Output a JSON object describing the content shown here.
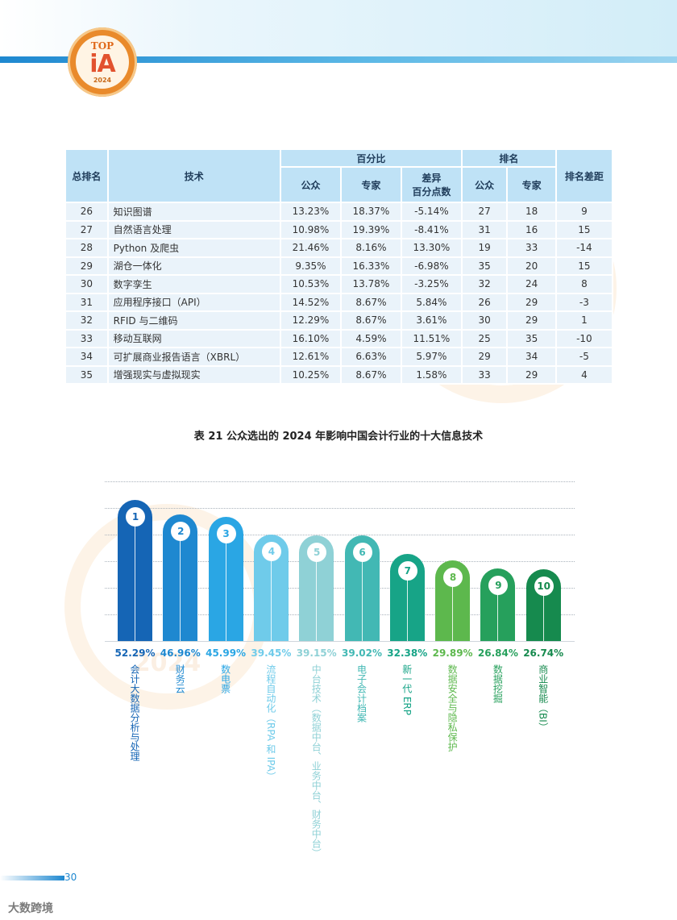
{
  "logo": {
    "top": "TOP",
    "ia": "iA",
    "year": "2024"
  },
  "table": {
    "h_rank": "总排名",
    "h_tech": "技术",
    "h_pct": "百分比",
    "h_rankgroup": "排名",
    "h_diff_rank": "排名差距",
    "h_public": "公众",
    "h_expert": "专家",
    "h_diff_line1": "差异",
    "h_diff_line2": "百分点数",
    "h_public2": "公众",
    "h_expert2": "专家",
    "rows": [
      [
        "26",
        "知识图谱",
        "13.23%",
        "18.37%",
        "-5.14%",
        "27",
        "18",
        "9"
      ],
      [
        "27",
        "自然语言处理",
        "10.98%",
        "19.39%",
        "-8.41%",
        "31",
        "16",
        "15"
      ],
      [
        "28",
        "Python 及爬虫",
        "21.46%",
        "8.16%",
        "13.30%",
        "19",
        "33",
        "-14"
      ],
      [
        "29",
        "湖仓一体化",
        "9.35%",
        "16.33%",
        "-6.98%",
        "35",
        "20",
        "15"
      ],
      [
        "30",
        "数字孪生",
        "10.53%",
        "13.78%",
        "-3.25%",
        "32",
        "24",
        "8"
      ],
      [
        "31",
        "应用程序接口（API）",
        "14.52%",
        "8.67%",
        "5.84%",
        "26",
        "29",
        "-3"
      ],
      [
        "32",
        "RFID 与二维码",
        "12.29%",
        "8.67%",
        "3.61%",
        "30",
        "29",
        "1"
      ],
      [
        "33",
        "移动互联网",
        "16.10%",
        "4.59%",
        "11.51%",
        "25",
        "35",
        "-10"
      ],
      [
        "34",
        "可扩展商业报告语言（XBRL）",
        "12.61%",
        "6.63%",
        "5.97%",
        "29",
        "34",
        "-5"
      ],
      [
        "35",
        "增强现实与虚拟现实",
        "10.25%",
        "8.67%",
        "1.58%",
        "33",
        "29",
        "4"
      ]
    ]
  },
  "caption": "表 21  公众选出的 2024 年影响中国会计行业的十大信息技术",
  "chart_data": {
    "type": "bar",
    "title": "",
    "xlabel": "",
    "ylabel": "",
    "categories": [
      "会计大数据分析与处理",
      "财务云",
      "数电票",
      "流程自动化（RPA 和 IPA）",
      "中台技术（数据中台、业务中台、财务中台）",
      "电子会计档案",
      "新一代 ERP",
      "数据安全与隐私保护",
      "数据挖掘",
      "商业智能（BI）"
    ],
    "ranks": [
      "1",
      "2",
      "3",
      "4",
      "5",
      "6",
      "7",
      "8",
      "9",
      "10"
    ],
    "values": [
      52.29,
      46.96,
      45.99,
      39.45,
      39.15,
      39.02,
      32.38,
      29.89,
      26.84,
      26.74
    ],
    "value_labels": [
      "52.29%",
      "46.96%",
      "45.99%",
      "39.45%",
      "39.15%",
      "39.02%",
      "32.38%",
      "29.89%",
      "26.84%",
      "26.74%"
    ],
    "colors": [
      "#1565b5",
      "#1e88d0",
      "#2aa6e4",
      "#6fcbea",
      "#8fd1d6",
      "#42b8b4",
      "#17a487",
      "#5db84d",
      "#26a05c",
      "#168a4e"
    ],
    "ylim": [
      0,
      60
    ],
    "grid": true
  },
  "footer": {
    "page": "30",
    "brand": "大数跨境"
  }
}
